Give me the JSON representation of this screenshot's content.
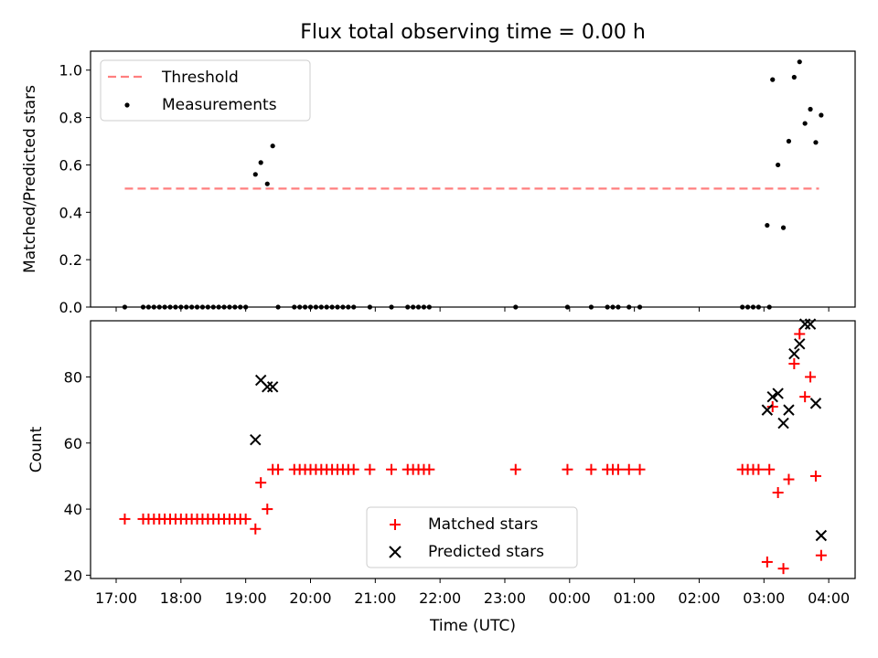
{
  "chart_data": [
    {
      "type": "scatter",
      "title": "Flux total observing time = 0.00 h",
      "xlabel": "",
      "ylabel": "Matched/Predicted stars",
      "xlim": [
        "17:00",
        "04:00"
      ],
      "ylim": [
        0,
        1.08
      ],
      "yticks": [
        "0.0",
        "0.2",
        "0.4",
        "0.6",
        "0.8",
        "1.0"
      ],
      "legend": {
        "position": "top-left",
        "entries": [
          "Threshold",
          "Measurements"
        ]
      },
      "threshold": {
        "name": "Threshold",
        "value": 0.5,
        "x_range": [
          "17:08",
          "03:51"
        ],
        "color": "#ff7f7f"
      },
      "series": [
        {
          "name": "Measurements",
          "color": "#000000",
          "points": [
            [
              "17:08",
              0
            ],
            [
              "17:25",
              0
            ],
            [
              "17:30",
              0
            ],
            [
              "17:35",
              0
            ],
            [
              "17:40",
              0
            ],
            [
              "17:45",
              0
            ],
            [
              "17:50",
              0
            ],
            [
              "17:55",
              0
            ],
            [
              "18:00",
              0
            ],
            [
              "18:05",
              0
            ],
            [
              "18:10",
              0
            ],
            [
              "18:15",
              0
            ],
            [
              "18:20",
              0
            ],
            [
              "18:25",
              0
            ],
            [
              "18:30",
              0
            ],
            [
              "18:35",
              0
            ],
            [
              "18:40",
              0
            ],
            [
              "18:45",
              0
            ],
            [
              "18:50",
              0
            ],
            [
              "18:55",
              0
            ],
            [
              "19:00",
              0
            ],
            [
              "19:09",
              0.56
            ],
            [
              "19:14",
              0.61
            ],
            [
              "19:20",
              0.52
            ],
            [
              "19:25",
              0.68
            ],
            [
              "19:30",
              0
            ],
            [
              "19:45",
              0
            ],
            [
              "19:50",
              0
            ],
            [
              "19:55",
              0
            ],
            [
              "20:00",
              0
            ],
            [
              "20:05",
              0
            ],
            [
              "20:10",
              0
            ],
            [
              "20:15",
              0
            ],
            [
              "20:20",
              0
            ],
            [
              "20:25",
              0
            ],
            [
              "20:30",
              0
            ],
            [
              "20:35",
              0
            ],
            [
              "20:40",
              0
            ],
            [
              "20:55",
              0
            ],
            [
              "21:15",
              0
            ],
            [
              "21:30",
              0
            ],
            [
              "21:35",
              0
            ],
            [
              "21:40",
              0
            ],
            [
              "21:45",
              0
            ],
            [
              "21:50",
              0
            ],
            [
              "23:10",
              0
            ],
            [
              "23:58",
              0
            ],
            [
              "00:20",
              0
            ],
            [
              "00:35",
              0
            ],
            [
              "00:40",
              0
            ],
            [
              "00:45",
              0
            ],
            [
              "00:55",
              0
            ],
            [
              "01:05",
              0
            ],
            [
              "02:40",
              0
            ],
            [
              "02:45",
              0
            ],
            [
              "02:50",
              0
            ],
            [
              "02:55",
              0
            ],
            [
              "03:05",
              0
            ],
            [
              "03:03",
              0.345
            ],
            [
              "03:08",
              0.96
            ],
            [
              "03:13",
              0.6
            ],
            [
              "03:18",
              0.335
            ],
            [
              "03:23",
              0.7
            ],
            [
              "03:28",
              0.97
            ],
            [
              "03:33",
              1.035
            ],
            [
              "03:38",
              0.775
            ],
            [
              "03:43",
              0.835
            ],
            [
              "03:48",
              0.695
            ],
            [
              "03:53",
              0.81
            ]
          ]
        }
      ]
    },
    {
      "type": "scatter",
      "title": "",
      "xlabel": "Time (UTC)",
      "ylabel": "Count",
      "xlim": [
        "17:00",
        "04:00"
      ],
      "xticks": [
        "17:00",
        "18:00",
        "19:00",
        "20:00",
        "21:00",
        "22:00",
        "23:00",
        "00:00",
        "01:00",
        "02:00",
        "03:00",
        "04:00"
      ],
      "ylim": [
        19,
        97
      ],
      "yticks": [
        "20",
        "40",
        "60",
        "80"
      ],
      "legend": {
        "position": "lower-center",
        "entries": [
          "Matched stars",
          "Predicted stars"
        ]
      },
      "series": [
        {
          "name": "Matched stars",
          "color": "#ff0000",
          "marker": "+",
          "points": [
            [
              "17:08",
              37
            ],
            [
              "17:25",
              37
            ],
            [
              "17:30",
              37
            ],
            [
              "17:35",
              37
            ],
            [
              "17:40",
              37
            ],
            [
              "17:45",
              37
            ],
            [
              "17:50",
              37
            ],
            [
              "17:55",
              37
            ],
            [
              "18:00",
              37
            ],
            [
              "18:05",
              37
            ],
            [
              "18:10",
              37
            ],
            [
              "18:15",
              37
            ],
            [
              "18:20",
              37
            ],
            [
              "18:25",
              37
            ],
            [
              "18:30",
              37
            ],
            [
              "18:35",
              37
            ],
            [
              "18:40",
              37
            ],
            [
              "18:45",
              37
            ],
            [
              "18:50",
              37
            ],
            [
              "18:55",
              37
            ],
            [
              "19:00",
              37
            ],
            [
              "19:09",
              34
            ],
            [
              "19:14",
              48
            ],
            [
              "19:20",
              40
            ],
            [
              "19:25",
              52
            ],
            [
              "19:30",
              52
            ],
            [
              "19:45",
              52
            ],
            [
              "19:50",
              52
            ],
            [
              "19:55",
              52
            ],
            [
              "20:00",
              52
            ],
            [
              "20:05",
              52
            ],
            [
              "20:10",
              52
            ],
            [
              "20:15",
              52
            ],
            [
              "20:20",
              52
            ],
            [
              "20:25",
              52
            ],
            [
              "20:30",
              52
            ],
            [
              "20:35",
              52
            ],
            [
              "20:40",
              52
            ],
            [
              "20:55",
              52
            ],
            [
              "21:15",
              52
            ],
            [
              "21:30",
              52
            ],
            [
              "21:35",
              52
            ],
            [
              "21:40",
              52
            ],
            [
              "21:45",
              52
            ],
            [
              "21:50",
              52
            ],
            [
              "23:10",
              52
            ],
            [
              "23:58",
              52
            ],
            [
              "00:20",
              52
            ],
            [
              "00:35",
              52
            ],
            [
              "00:40",
              52
            ],
            [
              "00:45",
              52
            ],
            [
              "00:55",
              52
            ],
            [
              "01:05",
              52
            ],
            [
              "02:40",
              52
            ],
            [
              "02:45",
              52
            ],
            [
              "02:50",
              52
            ],
            [
              "02:55",
              52
            ],
            [
              "03:05",
              52
            ],
            [
              "03:03",
              24
            ],
            [
              "03:08",
              71
            ],
            [
              "03:13",
              45
            ],
            [
              "03:18",
              22
            ],
            [
              "03:23",
              49
            ],
            [
              "03:28",
              84
            ],
            [
              "03:33",
              93
            ],
            [
              "03:38",
              74
            ],
            [
              "03:43",
              80
            ],
            [
              "03:48",
              50
            ],
            [
              "03:53",
              26
            ]
          ]
        },
        {
          "name": "Predicted stars",
          "color": "#000000",
          "marker": "x",
          "points": [
            [
              "19:09",
              61
            ],
            [
              "19:14",
              79
            ],
            [
              "19:20",
              77
            ],
            [
              "19:25",
              77
            ],
            [
              "03:03",
              70
            ],
            [
              "03:08",
              74
            ],
            [
              "03:13",
              75
            ],
            [
              "03:18",
              66
            ],
            [
              "03:23",
              70
            ],
            [
              "03:28",
              87
            ],
            [
              "03:33",
              90
            ],
            [
              "03:38",
              96
            ],
            [
              "03:43",
              96
            ],
            [
              "03:48",
              72
            ],
            [
              "03:53",
              32
            ]
          ]
        }
      ]
    }
  ]
}
